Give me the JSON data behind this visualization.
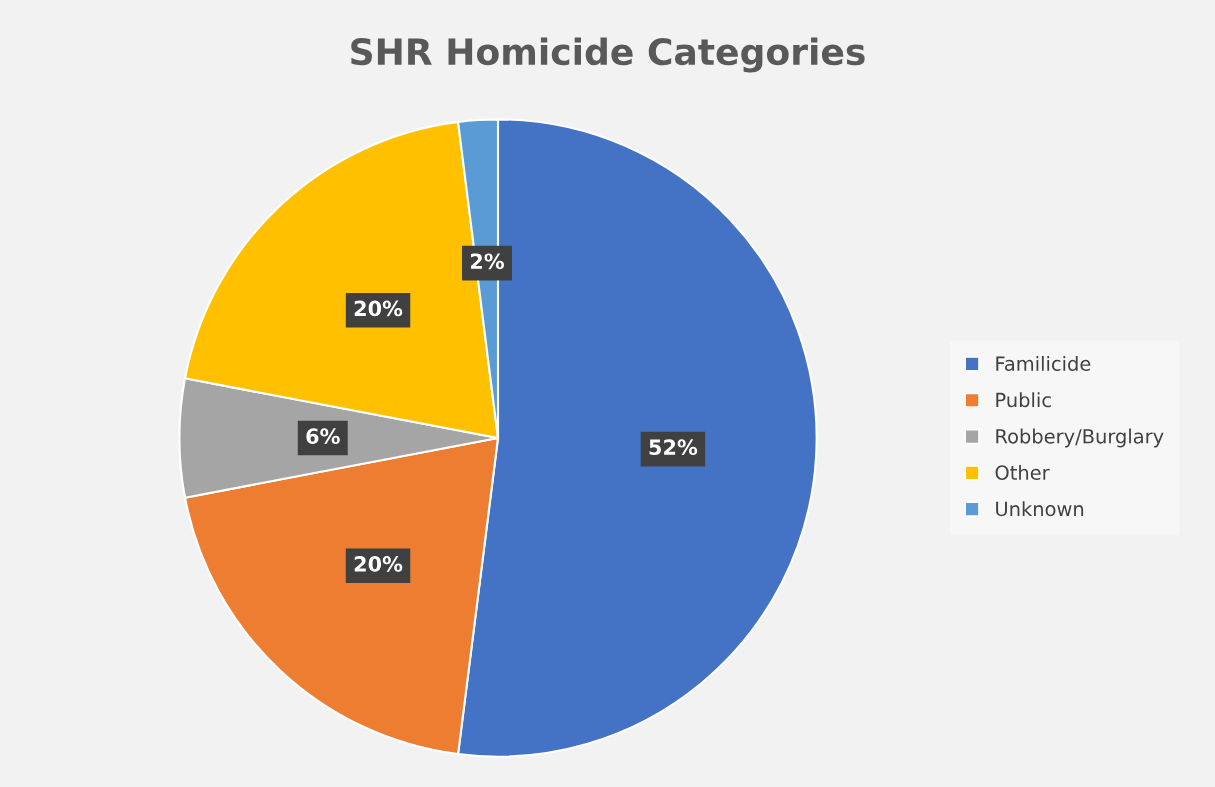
{
  "chart_data": {
    "type": "pie",
    "title": "SHR Homicide Categories",
    "categories": [
      "Familicide",
      "Public",
      "Robbery/Burglary",
      "Other",
      "Unknown"
    ],
    "values": [
      52,
      20,
      6,
      20,
      2
    ],
    "colors": [
      "#4472c4",
      "#ed7d31",
      "#a5a5a5",
      "#ffc000",
      "#5b9bd5"
    ],
    "value_labels": [
      "52%",
      "20%",
      "6%",
      "20%",
      "2%"
    ],
    "legend": "right"
  }
}
